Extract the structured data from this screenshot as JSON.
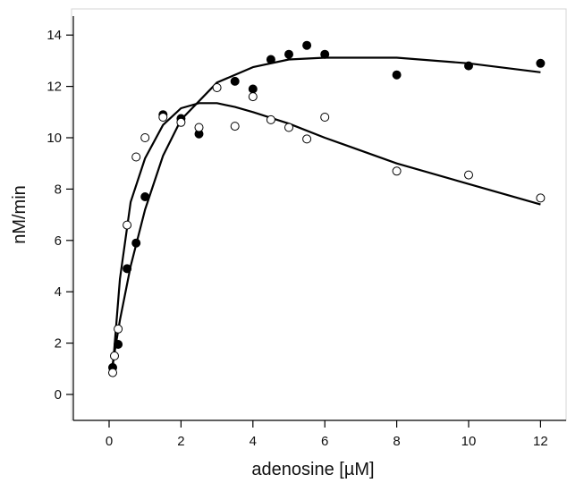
{
  "chart_data": {
    "type": "scatter",
    "title": "",
    "xlabel": "adenosine [µM]",
    "ylabel": "nM/min",
    "xlim": [
      -1,
      12.7
    ],
    "ylim": [
      -1,
      15
    ],
    "xticks": [
      0,
      2,
      4,
      6,
      8,
      10,
      12
    ],
    "yticks": [
      0,
      2,
      4,
      6,
      8,
      10,
      12,
      14
    ],
    "grid": false,
    "legend": "none",
    "series": [
      {
        "marker": "filled-circle",
        "color": "#000000",
        "points": [
          [
            0.1,
            1.05
          ],
          [
            0.25,
            1.95
          ],
          [
            0.5,
            4.9
          ],
          [
            0.75,
            5.9
          ],
          [
            1.0,
            7.7
          ],
          [
            1.5,
            10.9
          ],
          [
            2.0,
            10.75
          ],
          [
            2.5,
            10.15
          ],
          [
            3.5,
            12.2
          ],
          [
            4.0,
            11.9
          ],
          [
            4.5,
            13.05
          ],
          [
            5.0,
            13.25
          ],
          [
            5.5,
            13.6
          ],
          [
            6.0,
            13.25
          ],
          [
            8.0,
            12.45
          ],
          [
            10.0,
            12.8
          ],
          [
            12.0,
            12.9
          ]
        ],
        "fit": [
          [
            0.1,
            1.2
          ],
          [
            0.3,
            2.9
          ],
          [
            0.6,
            5.0
          ],
          [
            1.0,
            7.2
          ],
          [
            1.5,
            9.3
          ],
          [
            2.0,
            10.7
          ],
          [
            3.0,
            12.15
          ],
          [
            4.0,
            12.75
          ],
          [
            5.0,
            13.05
          ],
          [
            6.0,
            13.12
          ],
          [
            8.0,
            13.12
          ],
          [
            10.0,
            12.9
          ],
          [
            12.0,
            12.55
          ]
        ]
      },
      {
        "marker": "open-circle",
        "color": "#000000",
        "points": [
          [
            0.1,
            0.85
          ],
          [
            0.15,
            1.5
          ],
          [
            0.25,
            2.55
          ],
          [
            0.5,
            6.6
          ],
          [
            0.75,
            9.25
          ],
          [
            1.0,
            10.0
          ],
          [
            1.5,
            10.8
          ],
          [
            2.0,
            10.6
          ],
          [
            2.5,
            10.4
          ],
          [
            3.0,
            11.95
          ],
          [
            3.5,
            10.45
          ],
          [
            4.0,
            11.6
          ],
          [
            4.5,
            10.7
          ],
          [
            5.0,
            10.4
          ],
          [
            5.5,
            9.95
          ],
          [
            6.0,
            10.8
          ],
          [
            8.0,
            8.7
          ],
          [
            10.0,
            8.55
          ],
          [
            12.0,
            7.65
          ]
        ],
        "fit": [
          [
            0.1,
            1.0
          ],
          [
            0.3,
            4.5
          ],
          [
            0.6,
            7.5
          ],
          [
            1.0,
            9.2
          ],
          [
            1.5,
            10.5
          ],
          [
            2.0,
            11.15
          ],
          [
            2.5,
            11.35
          ],
          [
            3.0,
            11.35
          ],
          [
            3.5,
            11.2
          ],
          [
            4.0,
            11.0
          ],
          [
            5.0,
            10.55
          ],
          [
            6.0,
            10.0
          ],
          [
            8.0,
            9.0
          ],
          [
            10.0,
            8.2
          ],
          [
            12.0,
            7.4
          ]
        ]
      }
    ]
  }
}
